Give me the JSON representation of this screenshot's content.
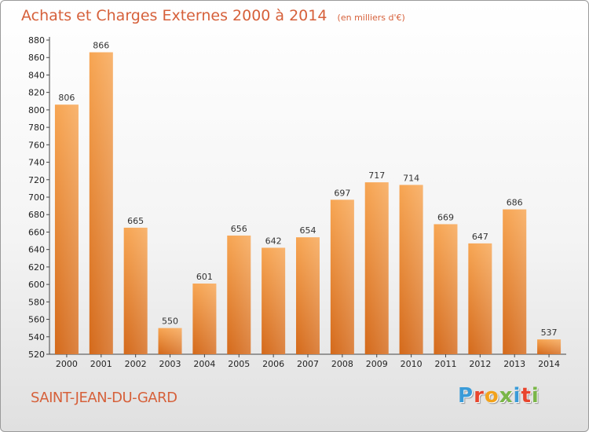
{
  "chart_data": {
    "type": "bar",
    "title": "Achats et Charges Externes 2000 à 2014",
    "unit_note": "(en milliers d'€)",
    "categories": [
      "2000",
      "2001",
      "2002",
      "2003",
      "2004",
      "2005",
      "2006",
      "2007",
      "2008",
      "2009",
      "2010",
      "2011",
      "2012",
      "2013",
      "2014"
    ],
    "values": [
      806,
      866,
      665,
      550,
      601,
      656,
      642,
      654,
      697,
      717,
      714,
      669,
      647,
      686,
      537
    ],
    "ylim": [
      520,
      880
    ],
    "ytick_step": 20,
    "grid": false,
    "legend": "none",
    "bar_color": "#f0913a"
  },
  "footer": {
    "place_name": "SAINT-JEAN-DU-GARD",
    "brand": "Proxiti",
    "brand_colors": [
      "#3a9bd8",
      "#e8452d",
      "#f2a21c",
      "#7ab648",
      "#3a9bd8",
      "#e8452d",
      "#7ab648"
    ]
  }
}
